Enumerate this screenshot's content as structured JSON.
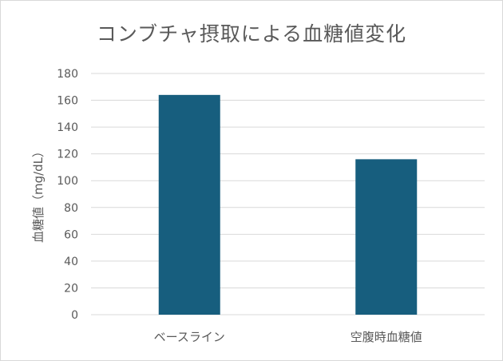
{
  "chart_data": {
    "type": "bar",
    "title": "コンブチャ摂取による血糖値変化",
    "xlabel": "",
    "ylabel": "血糖値（mg/dL）",
    "categories": [
      "ベースライン",
      "空腹時血糖値"
    ],
    "values": [
      164,
      116
    ],
    "ylim": [
      0,
      180
    ],
    "yticks": [
      0,
      20,
      40,
      60,
      80,
      100,
      120,
      140,
      160,
      180
    ],
    "grid": true,
    "legend": "none",
    "bar_color": "#175e7e",
    "grid_color": "#d9d9d9",
    "text_color": "#595959"
  }
}
